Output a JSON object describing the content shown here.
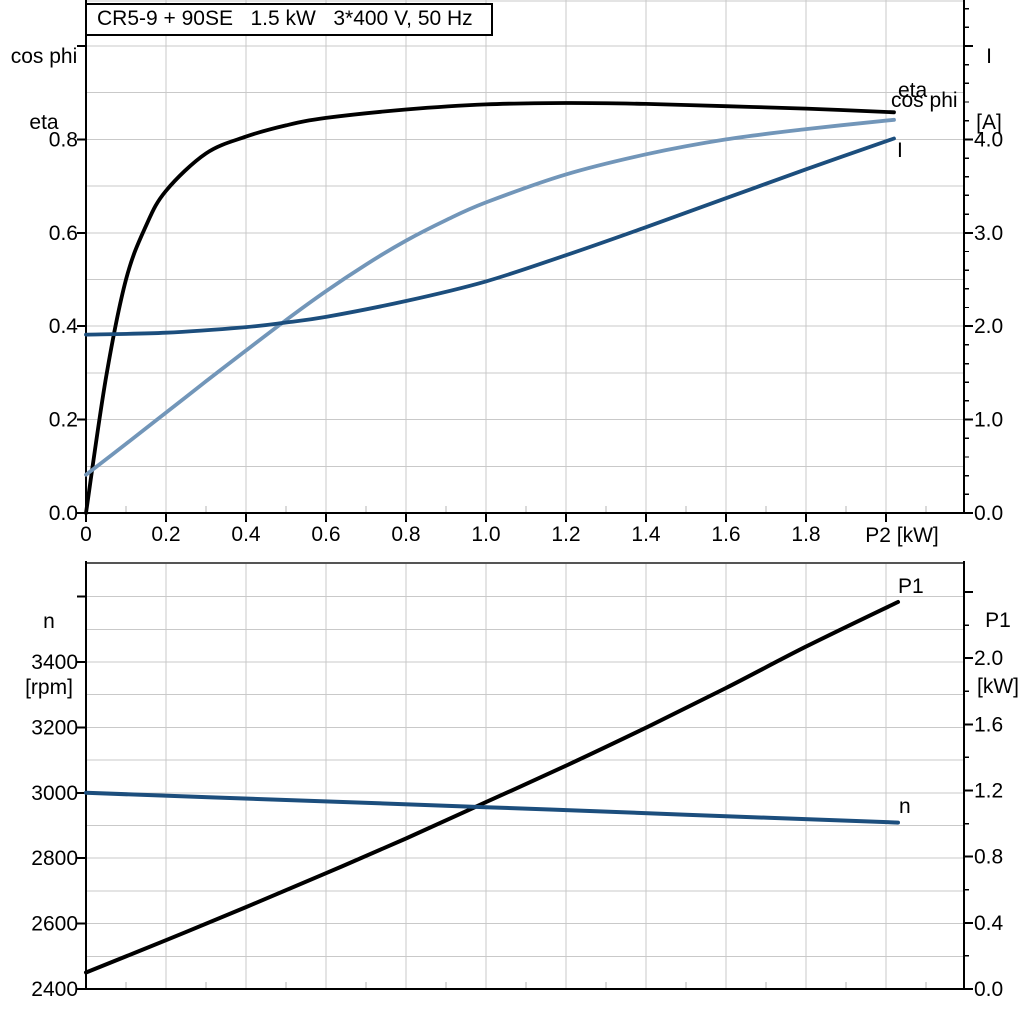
{
  "title": "CR5-9 + 90SE   1.5 kW   3*400 V, 50 Hz",
  "colors": {
    "black": "#000000",
    "dark_blue": "#1c4e7d",
    "light_blue": "#7296b9",
    "grid": "#c9c9c9",
    "minor_stub": "#b4b4b4",
    "axis": "#000000",
    "top_border": "#555555"
  },
  "labels": {
    "top_left_axis": [
      "cos phi",
      "eta"
    ],
    "top_right_axis": [
      "I",
      "[A]"
    ],
    "x_axis": "P2 [kW]",
    "bottom_left_axis": [
      "n",
      "[rpm]"
    ],
    "bottom_right_axis": [
      "P1",
      "[kW]"
    ]
  },
  "chart_data": [
    {
      "id": "top-chart",
      "type": "line",
      "title": "CR5-9 + 90SE   1.5 kW   3*400 V, 50 Hz",
      "xlabel": "P2 [kW]",
      "x_ticks": [
        0,
        0.2,
        0.4,
        0.6,
        0.8,
        1.0,
        1.2,
        1.4,
        1.6,
        1.8,
        2.0
      ],
      "x_tick_labels": [
        "0",
        "0.2",
        "0.4",
        "0.6",
        "0.8",
        "1.0",
        "1.2",
        "1.4",
        "1.6",
        "1.8"
      ],
      "x_minor_ticks": [
        0.1,
        0.3,
        0.5,
        0.7,
        0.9,
        1.1,
        1.3,
        1.5,
        1.7,
        1.9,
        2.1
      ],
      "xlim": [
        0,
        2.195
      ],
      "y_left": {
        "label_lines": [
          "cos phi",
          "eta"
        ],
        "ticks": [
          0.0,
          0.2,
          0.4,
          0.6,
          0.8
        ],
        "tick_labels": [
          "0.0",
          "0.2",
          "0.4",
          "0.6",
          "0.8"
        ],
        "unlabeled_ticks": [
          1.0
        ],
        "grid_values": [
          0.1,
          0.2,
          0.3,
          0.4,
          0.5,
          0.6,
          0.7,
          0.8,
          0.9,
          1.0,
          1.1
        ],
        "ylim": [
          0,
          1.1
        ]
      },
      "y_right": {
        "label_lines": [
          "I",
          "[A]"
        ],
        "ticks": [
          0.0,
          1.0,
          2.0,
          3.0,
          4.0
        ],
        "tick_labels": [
          "0.0",
          "1.0",
          "2.0",
          "3.0",
          "4.0"
        ],
        "unlabeled_ticks": [
          5.0
        ],
        "minor_step": 0.2,
        "ylim": [
          0,
          5.5
        ]
      },
      "grid": true,
      "legend_position": "curve-ends",
      "series": [
        {
          "label": "eta",
          "axis": "left",
          "color": "black",
          "x": [
            0,
            0.05,
            0.1,
            0.15,
            0.2,
            0.3,
            0.4,
            0.5,
            0.6,
            0.8,
            1.0,
            1.2,
            1.4,
            1.6,
            1.8,
            2.02
          ],
          "y": [
            0,
            0.29,
            0.5,
            0.615,
            0.69,
            0.77,
            0.806,
            0.83,
            0.846,
            0.864,
            0.875,
            0.878,
            0.876,
            0.871,
            0.866,
            0.858
          ]
        },
        {
          "label": "cos phi",
          "axis": "left",
          "color": "light_blue",
          "x": [
            0,
            0.1,
            0.2,
            0.3,
            0.4,
            0.5,
            0.6,
            0.7,
            0.8,
            0.9,
            1.0,
            1.2,
            1.4,
            1.6,
            1.8,
            2.02
          ],
          "y": [
            0.082,
            0.148,
            0.215,
            0.282,
            0.348,
            0.413,
            0.475,
            0.532,
            0.583,
            0.627,
            0.665,
            0.725,
            0.768,
            0.8,
            0.822,
            0.842
          ]
        },
        {
          "label": "I",
          "axis": "right",
          "color": "dark_blue",
          "x": [
            0,
            0.2,
            0.4,
            0.5,
            0.6,
            0.8,
            1.0,
            1.2,
            1.4,
            1.6,
            1.8,
            2.02
          ],
          "y": [
            1.91,
            1.93,
            1.99,
            2.04,
            2.1,
            2.27,
            2.48,
            2.76,
            3.06,
            3.37,
            3.68,
            4.01
          ]
        }
      ]
    },
    {
      "id": "bottom-chart",
      "type": "line",
      "xlabel": "",
      "x_ticks": [],
      "x_minor_ticks": [
        0.1,
        0.3,
        0.5,
        0.7,
        0.9,
        1.1,
        1.3,
        1.5,
        1.7,
        1.9,
        2.1
      ],
      "xlim": [
        0,
        2.195
      ],
      "y_left": {
        "label_lines": [
          "n",
          "[rpm]"
        ],
        "ticks": [
          2400,
          2600,
          2800,
          3000,
          3200,
          3400
        ],
        "tick_labels": [
          "2400",
          "2600",
          "2800",
          "3000",
          "3200",
          "3400"
        ],
        "unlabeled_ticks": [
          3600
        ],
        "grid_step": 100,
        "ylim": [
          2400,
          3700
        ]
      },
      "y_right": {
        "label_lines": [
          "P1",
          "[kW]"
        ],
        "ticks": [
          0.0,
          0.4,
          0.8,
          1.2,
          1.6,
          2.0
        ],
        "tick_labels": [
          "0.0",
          "0.4",
          "0.8",
          "1.2",
          "1.6",
          "2.0"
        ],
        "unlabeled_ticks": [
          2.4
        ],
        "minor_step": 0.2,
        "ylim": [
          0,
          2.57
        ]
      },
      "grid": true,
      "legend_position": "curve-ends",
      "series": [
        {
          "label": "P1",
          "axis": "right",
          "color": "black",
          "x": [
            0,
            0.2,
            0.4,
            0.6,
            0.8,
            1.0,
            1.2,
            1.4,
            1.6,
            1.8,
            2.03
          ],
          "y": [
            0.1,
            0.295,
            0.495,
            0.7,
            0.91,
            1.13,
            1.35,
            1.58,
            1.82,
            2.07,
            2.34
          ]
        },
        {
          "label": "n",
          "axis": "left",
          "color": "dark_blue",
          "x": [
            0,
            0.5,
            1.0,
            1.5,
            2.03
          ],
          "y": [
            3000,
            2978,
            2956,
            2933,
            2909
          ]
        }
      ]
    }
  ]
}
